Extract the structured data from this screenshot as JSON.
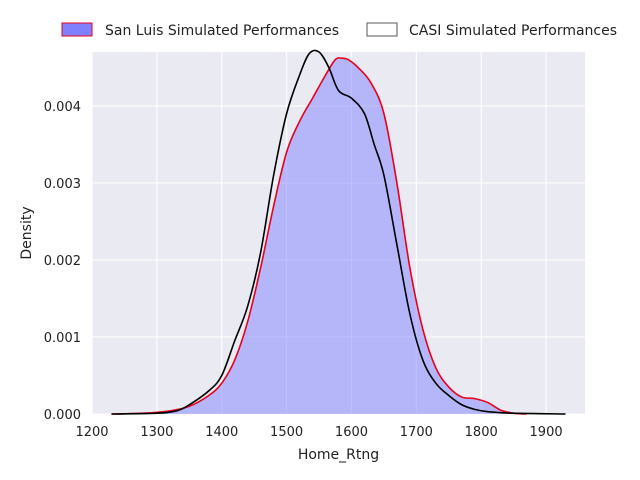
{
  "chart_data": {
    "type": "area",
    "xlabel": "Home_Rtng",
    "ylabel": "Density",
    "xlim": [
      1200,
      1960
    ],
    "ylim": [
      0,
      0.0047
    ],
    "x_ticks": [
      1200,
      1300,
      1400,
      1500,
      1600,
      1700,
      1800,
      1900
    ],
    "x_tick_labels": [
      "1200",
      "1300",
      "1400",
      "1500",
      "1600",
      "1700",
      "1800",
      "1900"
    ],
    "y_ticks": [
      0,
      0.001,
      0.002,
      0.003,
      0.004
    ],
    "y_tick_labels": [
      "0.000",
      "0.001",
      "0.002",
      "0.003",
      "0.004"
    ],
    "grid": true,
    "legend_position": "top",
    "colors": {
      "background": "#eaeaf2",
      "grid": "#ffffff",
      "san_luis_fill": "#8080ff",
      "san_luis_line": "#e8001c",
      "casi_line": "#000000"
    },
    "series": [
      {
        "name": "San Luis Simulated Performances",
        "style": "filled",
        "x": [
          1230,
          1280,
          1320,
          1350,
          1380,
          1400,
          1420,
          1440,
          1460,
          1480,
          1500,
          1520,
          1540,
          1560,
          1575,
          1585,
          1595,
          1610,
          1630,
          1650,
          1670,
          1690,
          1710,
          1730,
          1750,
          1770,
          1790,
          1810,
          1830,
          1850,
          1870
        ],
        "y": [
          0.0,
          1e-05,
          4e-05,
          0.0001,
          0.00024,
          0.0004,
          0.0007,
          0.0012,
          0.0019,
          0.0027,
          0.0034,
          0.0038,
          0.0041,
          0.0044,
          0.0046,
          0.00462,
          0.0046,
          0.0045,
          0.0043,
          0.0039,
          0.003,
          0.0019,
          0.0011,
          0.0006,
          0.00035,
          0.00022,
          0.0002,
          0.00015,
          5e-05,
          1e-05,
          0.0
        ]
      },
      {
        "name": "CASI Simulated Performances",
        "style": "outline",
        "x": [
          1230,
          1300,
          1330,
          1350,
          1380,
          1400,
          1420,
          1440,
          1460,
          1480,
          1500,
          1520,
          1535,
          1550,
          1565,
          1580,
          1600,
          1620,
          1635,
          1650,
          1670,
          1690,
          1710,
          1730,
          1750,
          1770,
          1790,
          1810,
          1850,
          1930
        ],
        "y": [
          0.0,
          1e-05,
          4e-05,
          0.00012,
          0.0003,
          0.0005,
          0.00095,
          0.0014,
          0.0021,
          0.0031,
          0.0039,
          0.0044,
          0.00468,
          0.0047,
          0.0045,
          0.0042,
          0.0041,
          0.0039,
          0.0035,
          0.0031,
          0.0022,
          0.0013,
          0.0007,
          0.0004,
          0.00024,
          0.00012,
          6e-05,
          3e-05,
          1e-05,
          0.0
        ]
      }
    ]
  }
}
